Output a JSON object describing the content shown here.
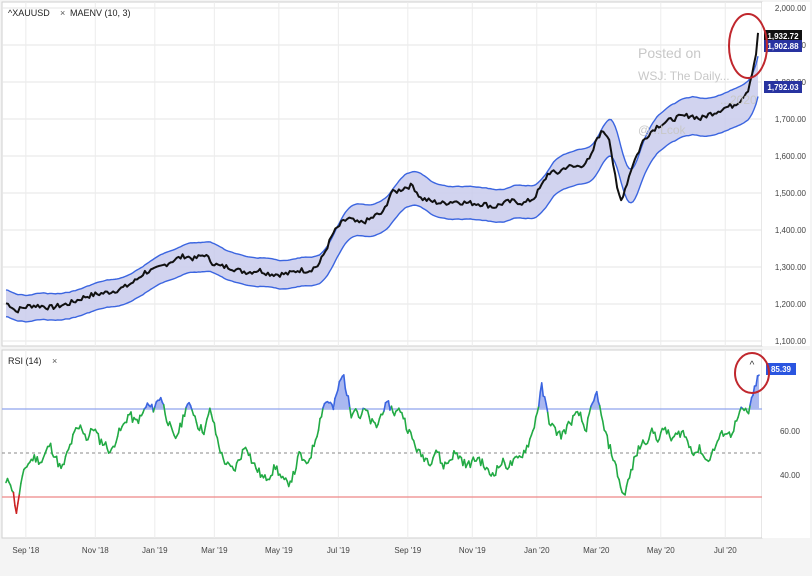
{
  "chart_data": [
    {
      "type": "line",
      "panel": "price",
      "legend": [
        "^XAUUSD",
        "MAENV (10, 3)"
      ],
      "x_ticks": [
        "Sep '18",
        "Nov '18",
        "Jan '19",
        "Mar '19",
        "May '19",
        "Jul '19",
        "Sep '19",
        "Nov '19",
        "Jan '20",
        "Mar '20",
        "May '20",
        "Jul '20"
      ],
      "y_ticks": [
        "1,100.00",
        "1,200.00",
        "1,300.00",
        "1,400.00",
        "1,500.00",
        "1,600.00",
        "1,700.00",
        "1,800.00",
        "1,900.00",
        "2,000.00"
      ],
      "ylim": [
        1100,
        2000
      ],
      "y_axis_side": "right",
      "grid": true,
      "series": [
        {
          "name": "^XAUUSD",
          "color": "#111111",
          "points": [
            [
              0,
              1202
            ],
            [
              5,
              1196
            ],
            [
              10,
              1180
            ],
            [
              15,
              1188
            ],
            [
              25,
              1196
            ],
            [
              35,
              1195
            ],
            [
              45,
              1190
            ],
            [
              55,
              1196
            ],
            [
              62,
              1200
            ],
            [
              70,
              1208
            ],
            [
              80,
              1220
            ],
            [
              90,
              1226
            ],
            [
              100,
              1230
            ],
            [
              110,
              1236
            ],
            [
              120,
              1246
            ],
            [
              130,
              1262
            ],
            [
              140,
              1286
            ],
            [
              150,
              1292
            ],
            [
              160,
              1306
            ],
            [
              170,
              1320
            ],
            [
              180,
              1330
            ],
            [
              190,
              1322
            ],
            [
              200,
              1334
            ],
            [
              208,
              1312
            ],
            [
              215,
              1302
            ],
            [
              225,
              1300
            ],
            [
              235,
              1290
            ],
            [
              245,
              1286
            ],
            [
              255,
              1292
            ],
            [
              265,
              1282
            ],
            [
              275,
              1280
            ],
            [
              285,
              1282
            ],
            [
              295,
              1292
            ],
            [
              305,
              1290
            ],
            [
              315,
              1305
            ],
            [
              322,
              1344
            ],
            [
              330,
              1392
            ],
            [
              338,
              1418
            ],
            [
              345,
              1432
            ],
            [
              355,
              1418
            ],
            [
              365,
              1426
            ],
            [
              373,
              1440
            ],
            [
              380,
              1446
            ],
            [
              388,
              1500
            ],
            [
              395,
              1506
            ],
            [
              403,
              1516
            ],
            [
              410,
              1520
            ],
            [
              418,
              1486
            ],
            [
              428,
              1478
            ],
            [
              440,
              1472
            ],
            [
              452,
              1478
            ],
            [
              462,
              1474
            ],
            [
              472,
              1472
            ],
            [
              482,
              1470
            ],
            [
              492,
              1462
            ],
            [
              502,
              1474
            ],
            [
              512,
              1478
            ],
            [
              522,
              1472
            ],
            [
              532,
              1486
            ],
            [
              540,
              1520
            ],
            [
              547,
              1556
            ],
            [
              556,
              1554
            ],
            [
              565,
              1572
            ],
            [
              573,
              1570
            ],
            [
              581,
              1576
            ],
            [
              589,
              1592
            ],
            [
              596,
              1650
            ],
            [
              602,
              1668
            ],
            [
              608,
              1650
            ],
            [
              612,
              1578
            ],
            [
              616,
              1510
            ],
            [
              620,
              1480
            ],
            [
              626,
              1528
            ],
            [
              632,
              1580
            ],
            [
              637,
              1608
            ],
            [
              642,
              1640
            ],
            [
              648,
              1660
            ],
            [
              656,
              1680
            ],
            [
              664,
              1690
            ],
            [
              672,
              1700
            ],
            [
              680,
              1706
            ],
            [
              690,
              1710
            ],
            [
              700,
              1700
            ],
            [
              708,
              1712
            ],
            [
              716,
              1720
            ],
            [
              724,
              1730
            ],
            [
              732,
              1736
            ],
            [
              740,
              1750
            ],
            [
              748,
              1780
            ],
            [
              755,
              1856
            ],
            [
              759,
              1932.72
            ]
          ]
        },
        {
          "name": "MAENV upper",
          "color": "#3b65e0",
          "value": "1,932.72"
        },
        {
          "name": "MAENV lower",
          "color": "#3b65e0",
          "value": "1,792.03"
        },
        {
          "name": "MAENV middle",
          "value": "1,902.88"
        }
      ],
      "envelope_percent": 3,
      "envelope_fill": "#c9cbec",
      "last_labels": [
        "1,932.72",
        "1,902.88",
        "1,792.03"
      ],
      "annotation_circle_color": "#c0272d"
    },
    {
      "type": "line",
      "panel": "rsi",
      "legend": [
        "RSI (14)"
      ],
      "y_ticks": [
        "40.00",
        "60.00"
      ],
      "ylim": [
        15,
        95
      ],
      "overbought": 70,
      "oversold": 30,
      "midline": 50,
      "last_value": "85.39",
      "colors": {
        "normal": "#22aa44",
        "overbought": "#3b65e0",
        "oversold": "#cc2222",
        "overbought_line": "#8fa4ee",
        "oversold_line": "#ee8888",
        "midline": "#888888"
      },
      "series": [
        {
          "name": "RSI (14)",
          "points": [
            [
              0,
              36
            ],
            [
              4,
              38
            ],
            [
              8,
              30
            ],
            [
              11,
              22
            ],
            [
              14,
              34
            ],
            [
              20,
              44
            ],
            [
              28,
              48
            ],
            [
              36,
              46
            ],
            [
              44,
              54
            ],
            [
              50,
              48
            ],
            [
              56,
              42
            ],
            [
              62,
              50
            ],
            [
              70,
              60
            ],
            [
              76,
              62
            ],
            [
              82,
              56
            ],
            [
              88,
              62
            ],
            [
              94,
              56
            ],
            [
              100,
              54
            ],
            [
              106,
              50
            ],
            [
              112,
              58
            ],
            [
              118,
              62
            ],
            [
              124,
              68
            ],
            [
              130,
              64
            ],
            [
              136,
              66
            ],
            [
              142,
              72
            ],
            [
              148,
              70
            ],
            [
              156,
              76
            ],
            [
              162,
              66
            ],
            [
              170,
              56
            ],
            [
              176,
              62
            ],
            [
              182,
              72
            ],
            [
              188,
              70
            ],
            [
              194,
              62
            ],
            [
              200,
              60
            ],
            [
              206,
              70
            ],
            [
              212,
              58
            ],
            [
              218,
              48
            ],
            [
              224,
              44
            ],
            [
              230,
              42
            ],
            [
              236,
              48
            ],
            [
              242,
              54
            ],
            [
              248,
              46
            ],
            [
              254,
              42
            ],
            [
              260,
              38
            ],
            [
              266,
              40
            ],
            [
              272,
              44
            ],
            [
              278,
              38
            ],
            [
              284,
              36
            ],
            [
              290,
              40
            ],
            [
              296,
              50
            ],
            [
              302,
              44
            ],
            [
              308,
              50
            ],
            [
              314,
              60
            ],
            [
              320,
              72
            ],
            [
              325,
              74
            ],
            [
              330,
              70
            ],
            [
              335,
              80
            ],
            [
              340,
              86
            ],
            [
              344,
              76
            ],
            [
              348,
              68
            ],
            [
              352,
              72
            ],
            [
              356,
              66
            ],
            [
              362,
              70
            ],
            [
              368,
              64
            ],
            [
              374,
              62
            ],
            [
              380,
              70
            ],
            [
              386,
              72
            ],
            [
              392,
              68
            ],
            [
              398,
              70
            ],
            [
              404,
              62
            ],
            [
              410,
              56
            ],
            [
              416,
              50
            ],
            [
              422,
              48
            ],
            [
              428,
              46
            ],
            [
              434,
              52
            ],
            [
              440,
              44
            ],
            [
              446,
              46
            ],
            [
              452,
              50
            ],
            [
              458,
              48
            ],
            [
              464,
              44
            ],
            [
              470,
              46
            ],
            [
              476,
              48
            ],
            [
              482,
              44
            ],
            [
              488,
              40
            ],
            [
              494,
              42
            ],
            [
              500,
              46
            ],
            [
              506,
              44
            ],
            [
              512,
              46
            ],
            [
              518,
              48
            ],
            [
              524,
              52
            ],
            [
              530,
              58
            ],
            [
              536,
              70
            ],
            [
              540,
              80
            ],
            [
              544,
              72
            ],
            [
              548,
              64
            ],
            [
              554,
              60
            ],
            [
              560,
              58
            ],
            [
              566,
              62
            ],
            [
              572,
              66
            ],
            [
              578,
              68
            ],
            [
              584,
              60
            ],
            [
              590,
              70
            ],
            [
              596,
              78
            ],
            [
              600,
              66
            ],
            [
              606,
              56
            ],
            [
              612,
              48
            ],
            [
              618,
              38
            ],
            [
              622,
              30
            ],
            [
              628,
              38
            ],
            [
              634,
              48
            ],
            [
              640,
              54
            ],
            [
              646,
              56
            ],
            [
              652,
              60
            ],
            [
              658,
              56
            ],
            [
              664,
              62
            ],
            [
              670,
              56
            ],
            [
              676,
              58
            ],
            [
              682,
              60
            ],
            [
              688,
              54
            ],
            [
              694,
              50
            ],
            [
              700,
              52
            ],
            [
              706,
              46
            ],
            [
              712,
              50
            ],
            [
              718,
              56
            ],
            [
              724,
              60
            ],
            [
              730,
              58
            ],
            [
              736,
              64
            ],
            [
              742,
              70
            ],
            [
              748,
              68
            ],
            [
              752,
              74
            ],
            [
              756,
              82
            ],
            [
              759,
              85.39
            ]
          ]
        }
      ]
    }
  ],
  "watermark": {
    "line1": "Posted on",
    "line2": "WSJ: The Daily...",
    "line3": "...2020",
    "line4": "@...Lcok"
  }
}
